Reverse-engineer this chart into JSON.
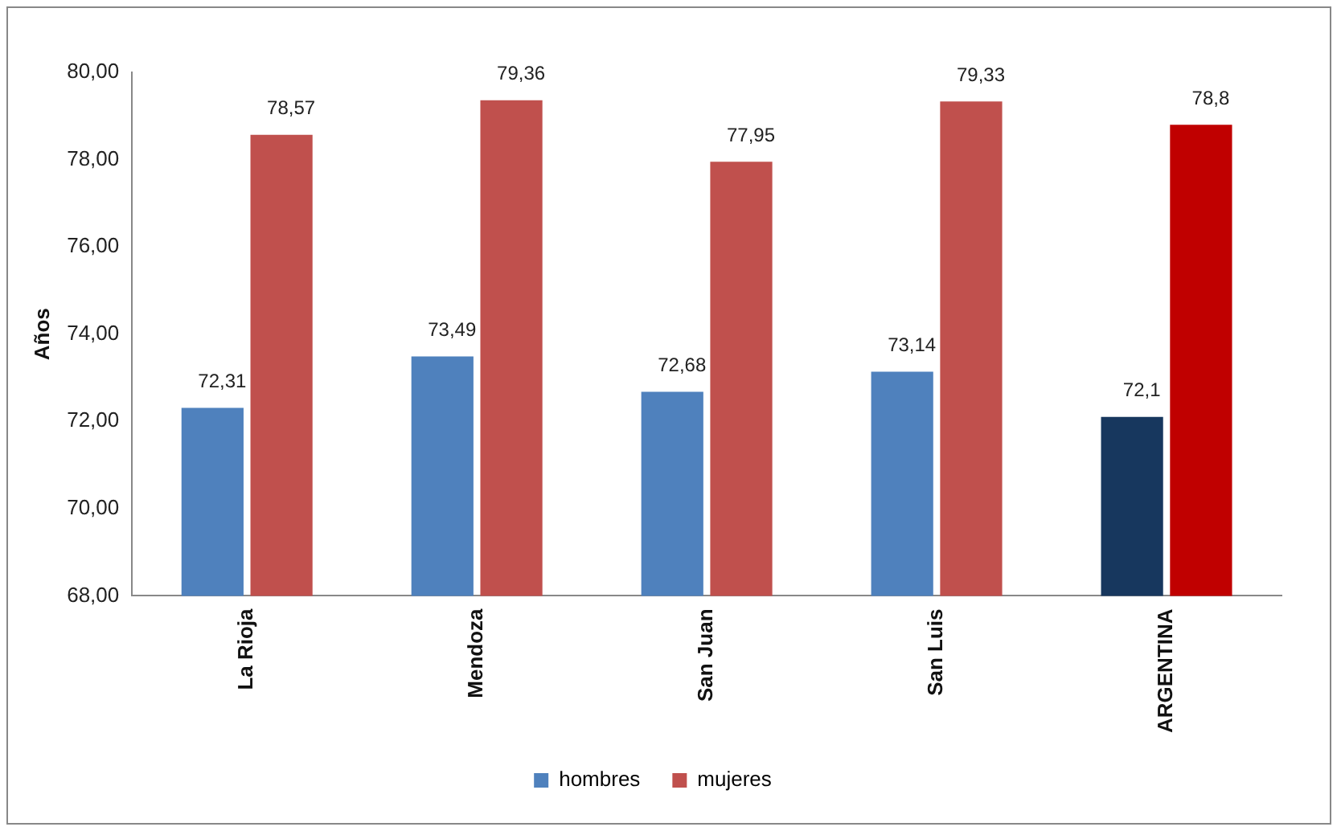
{
  "chart_data": {
    "type": "bar",
    "ylabel": "Años",
    "categories": [
      "La Rioja",
      "Mendoza",
      "San Juan",
      "San Luis",
      "ARGENTINA"
    ],
    "series": [
      {
        "name": "hombres",
        "color": "#4f81bd",
        "colors": [
          "#4f81bd",
          "#4f81bd",
          "#4f81bd",
          "#4f81bd",
          "#17375e"
        ],
        "values": [
          72.31,
          73.49,
          72.68,
          73.14,
          72.1
        ],
        "value_labels": [
          "72,31",
          "73,49",
          "72,68",
          "73,14",
          "72,1"
        ]
      },
      {
        "name": "mujeres",
        "color": "#c0504d",
        "colors": [
          "#c0504d",
          "#c0504d",
          "#c0504d",
          "#c0504d",
          "#c00000"
        ],
        "values": [
          78.57,
          79.36,
          77.95,
          79.33,
          78.8
        ],
        "value_labels": [
          "78,57",
          "79,36",
          "77,95",
          "79,33",
          "78,8"
        ]
      }
    ],
    "ylim": [
      68,
      80
    ],
    "yticks": [
      {
        "value": 68,
        "label": "68,00"
      },
      {
        "value": 70,
        "label": "70,00"
      },
      {
        "value": 72,
        "label": "72,00"
      },
      {
        "value": 74,
        "label": "74,00"
      },
      {
        "value": 76,
        "label": "76,00"
      },
      {
        "value": 78,
        "label": "78,00"
      },
      {
        "value": 80,
        "label": "80,00"
      }
    ],
    "grid": false,
    "legend": "bottom"
  }
}
